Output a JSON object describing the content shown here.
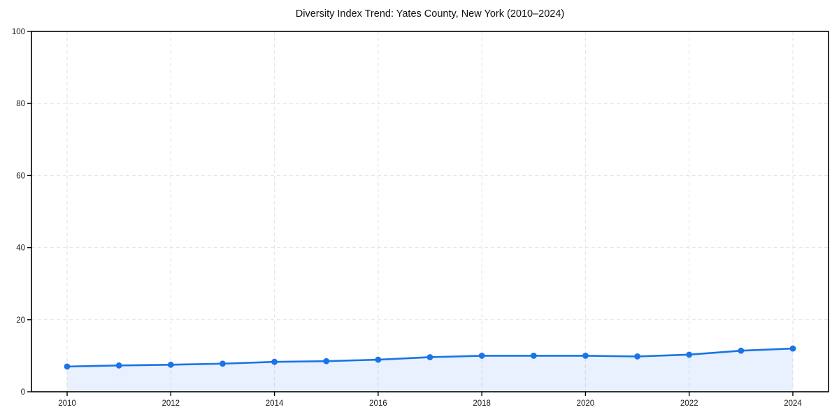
{
  "page": {
    "background_color": "#ffffff"
  },
  "chart_data": {
    "type": "line",
    "title": "Diversity Index Trend: Yates County, New York (2010–2024)",
    "xlabel": "",
    "ylabel": "",
    "x": [
      2010,
      2011,
      2012,
      2013,
      2014,
      2015,
      2016,
      2017,
      2018,
      2019,
      2020,
      2021,
      2022,
      2023,
      2024
    ],
    "series": [
      {
        "name": "Diversity Index",
        "values": [
          7.0,
          7.3,
          7.5,
          7.8,
          8.3,
          8.5,
          8.9,
          9.6,
          10.0,
          10.0,
          10.0,
          9.8,
          10.3,
          11.4,
          12.0
        ]
      }
    ],
    "area_fill": true,
    "markers": true,
    "xlim": [
      2009.3,
      2024.7
    ],
    "ylim": [
      0,
      100
    ],
    "xticks": [
      2010,
      2012,
      2014,
      2016,
      2018,
      2020,
      2022,
      2024
    ],
    "yticks": [
      0,
      20,
      40,
      60,
      80,
      100
    ],
    "grid": true,
    "legend": "none",
    "colors": {
      "line": "#1a73e8",
      "marker": "#1a73e8",
      "area": "#1a73e8",
      "area_opacity": 0.1,
      "grid": "#e2e2e2",
      "spine": "#000000",
      "tick_text": "#1a1a1a",
      "title_text": "#111111"
    }
  }
}
